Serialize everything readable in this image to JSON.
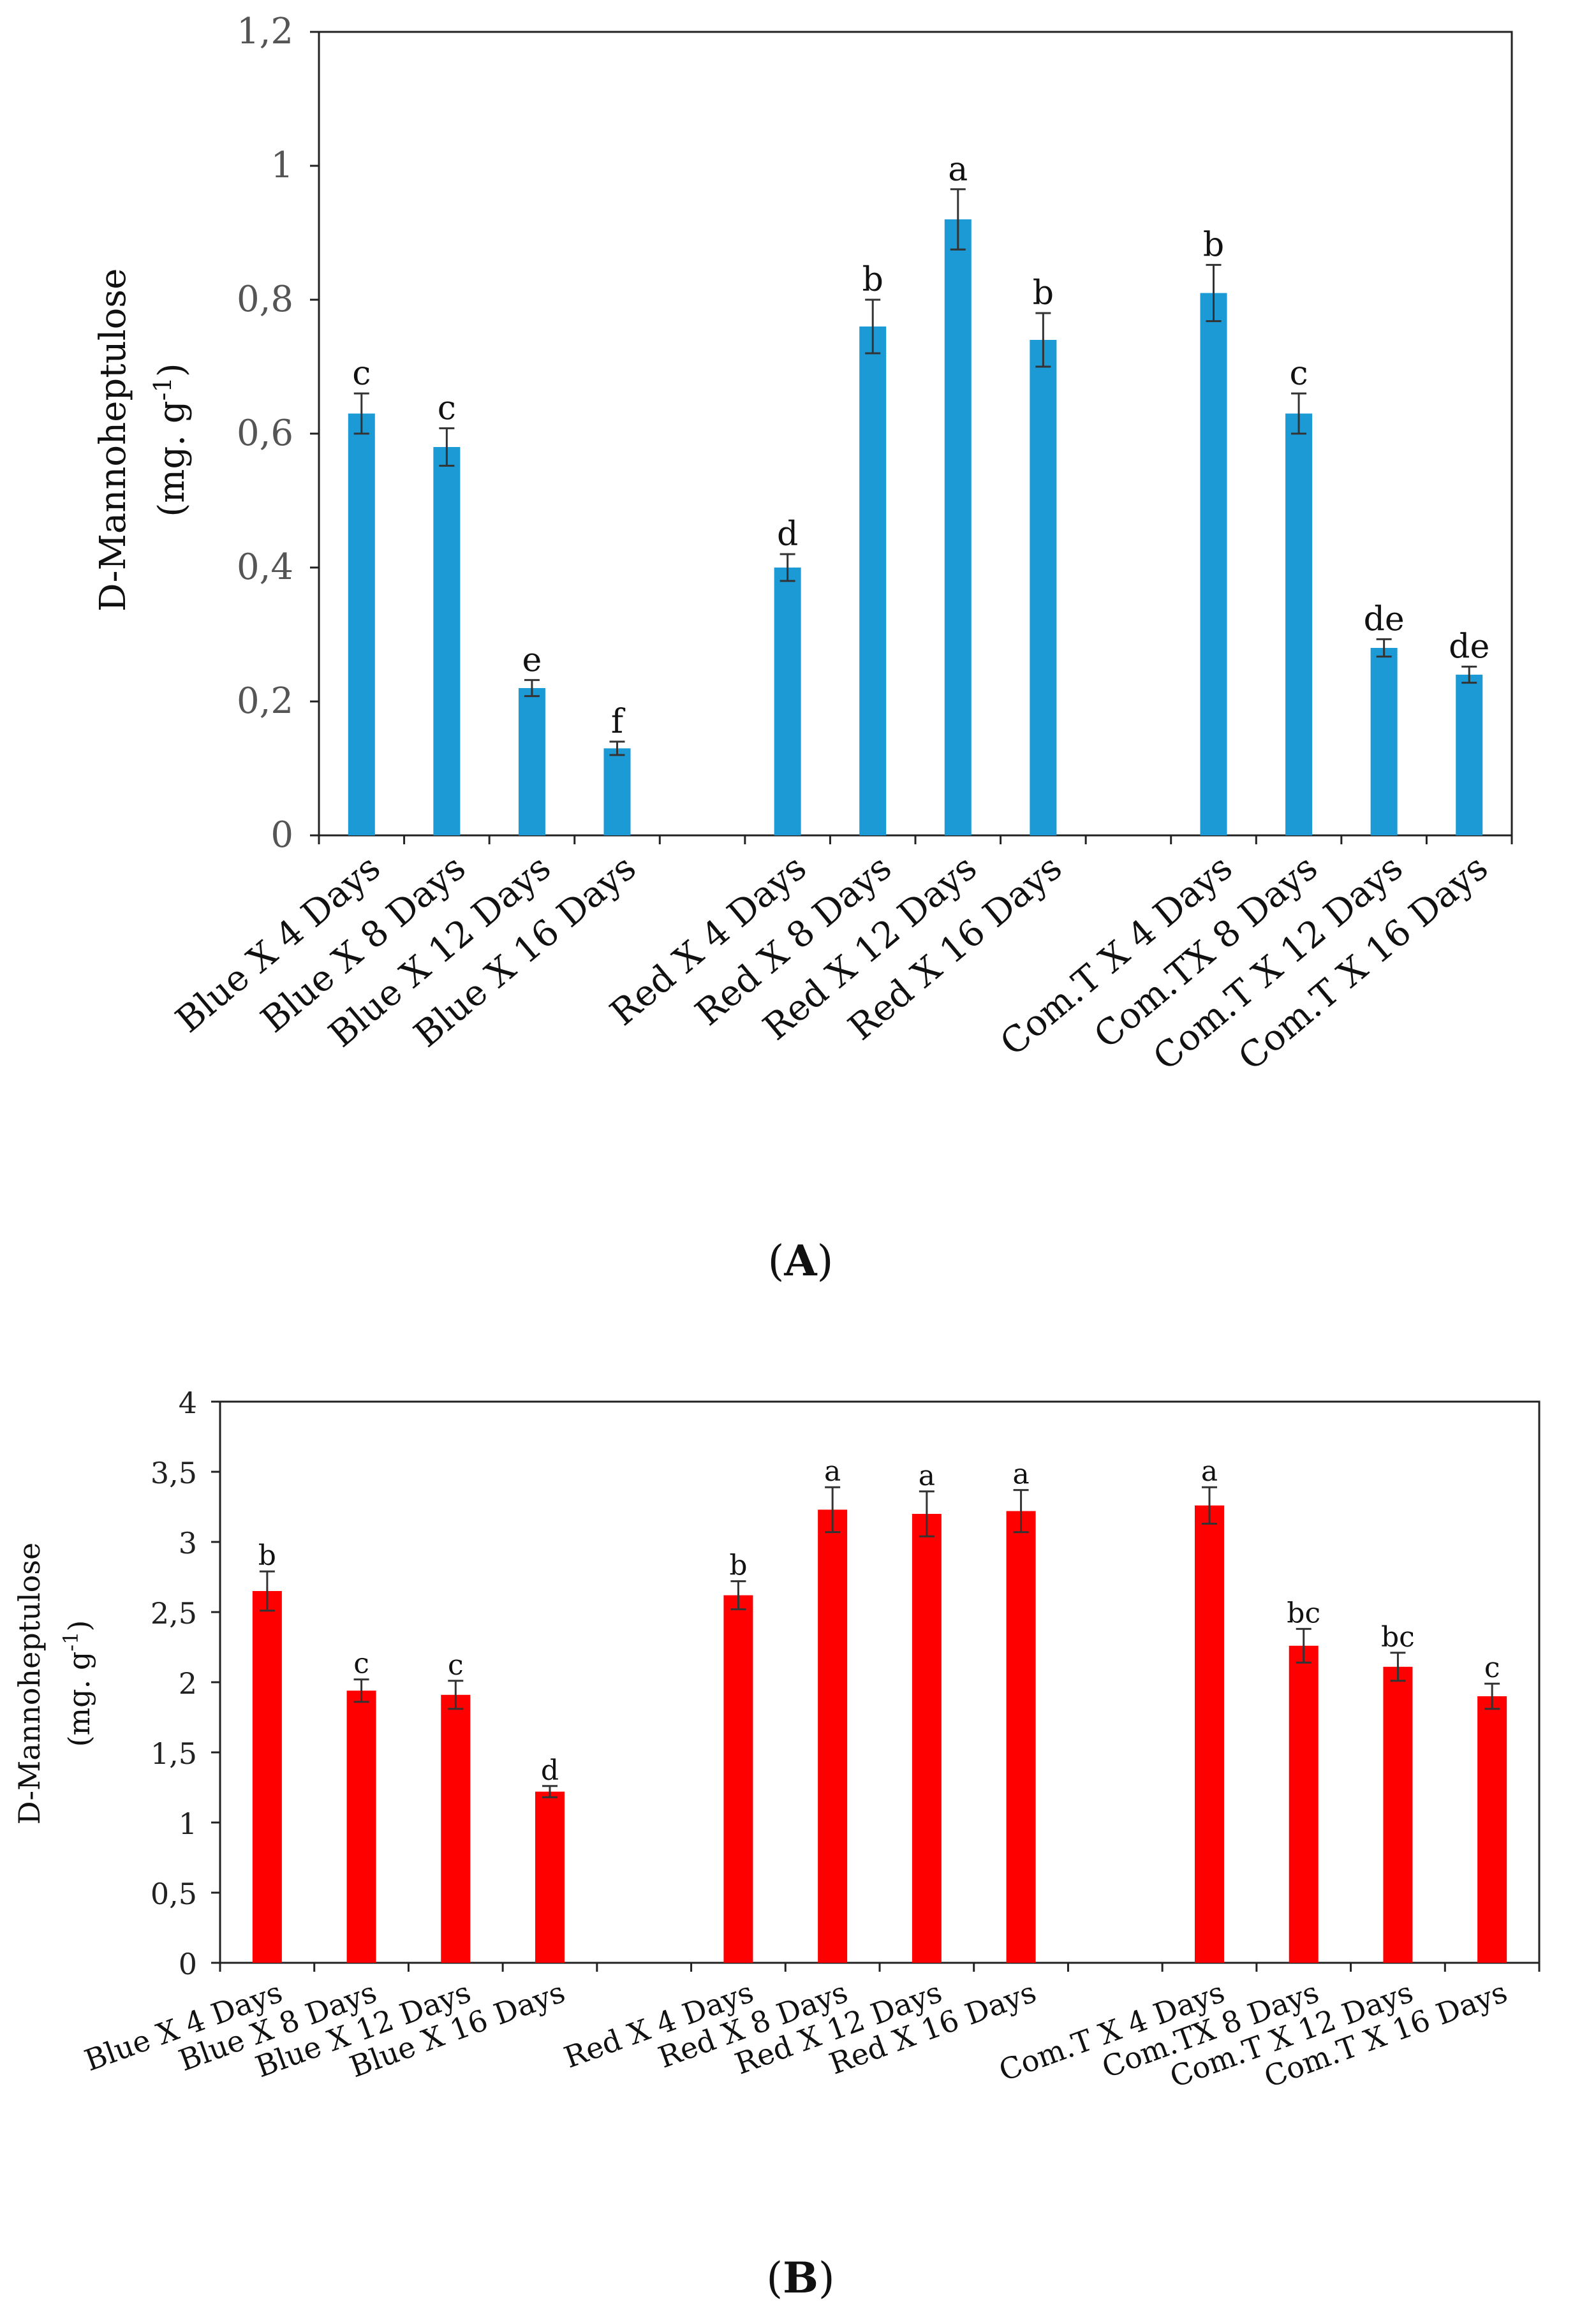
{
  "chart_data": [
    {
      "type": "bar",
      "panel": "A",
      "categories": [
        "Blue X 4 Days",
        "Blue X 8 Days",
        "Blue X 12 Days",
        "Blue X 16 Days",
        "Red X 4 Days",
        "Red X 8 Days",
        "Red X 12 Days",
        "Red X 16 Days",
        "Com.T X 4 Days",
        "Com.TX 8 Days",
        "Com.T X 12 Days",
        "Com.T  X 16 Days"
      ],
      "groups": [
        4,
        4,
        4
      ],
      "values": [
        0.63,
        0.58,
        0.22,
        0.13,
        0.4,
        0.76,
        0.92,
        0.74,
        0.81,
        0.63,
        0.28,
        0.24
      ],
      "errors": [
        0.03,
        0.028,
        0.012,
        0.01,
        0.02,
        0.04,
        0.045,
        0.04,
        0.042,
        0.03,
        0.013,
        0.012
      ],
      "letters": [
        "c",
        "c",
        "e",
        "f",
        "d",
        "b",
        "a",
        "b",
        "b",
        "c",
        "de",
        "de"
      ],
      "ylabel_line1": "D-Mannoheptulose",
      "ylabel_line2": "(mg. g",
      "ylabel_sup": "-1",
      "ylabel_close": ")",
      "ylim": [
        0,
        1.2
      ],
      "yticks": [
        0,
        0.2,
        0.4,
        0.6,
        0.8,
        1,
        1.2
      ],
      "ytick_labels": [
        "0",
        "0,2",
        "0,4",
        "0,6",
        "0,8",
        "1",
        "1,2"
      ],
      "color": "#1b9ad6"
    },
    {
      "type": "bar",
      "panel": "B",
      "categories": [
        "Blue X 4 Days",
        "Blue X 8 Days",
        "Blue X 12 Days",
        "Blue X 16 Days",
        "Red X 4 Days",
        "Red X 8 Days",
        "Red X 12 Days",
        "Red X 16 Days",
        "Com.T X 4 Days",
        "Com.TX 8 Days",
        "Com.T X 12 Days",
        "Com.T  X 16 Days"
      ],
      "groups": [
        4,
        4,
        4
      ],
      "values": [
        2.65,
        1.94,
        1.91,
        1.22,
        2.62,
        3.23,
        3.2,
        3.22,
        3.26,
        2.26,
        2.11,
        1.9
      ],
      "errors": [
        0.14,
        0.08,
        0.1,
        0.04,
        0.1,
        0.16,
        0.16,
        0.15,
        0.13,
        0.12,
        0.1,
        0.09
      ],
      "letters": [
        "b",
        "c",
        "c",
        "d",
        "b",
        "a",
        "a",
        "a",
        "a",
        "bc",
        "bc",
        "c"
      ],
      "ylabel_line1": "D-Mannoheptulose",
      "ylabel_line2": "(mg. g",
      "ylabel_sup": "-1",
      "ylabel_close": ")",
      "ylim": [
        0,
        4
      ],
      "yticks": [
        0,
        0.5,
        1,
        1.5,
        2,
        2.5,
        3,
        3.5,
        4
      ],
      "ytick_labels": [
        "0",
        "0,5",
        "1",
        "1,5",
        "2",
        "2,5",
        "3",
        "3,5",
        "4"
      ],
      "color": "#ff0000"
    }
  ],
  "panel_labels": {
    "a_open": "(",
    "a_letter": "A",
    "a_close": ")",
    "b_open": "(",
    "b_letter": "B",
    "b_close": ")"
  }
}
